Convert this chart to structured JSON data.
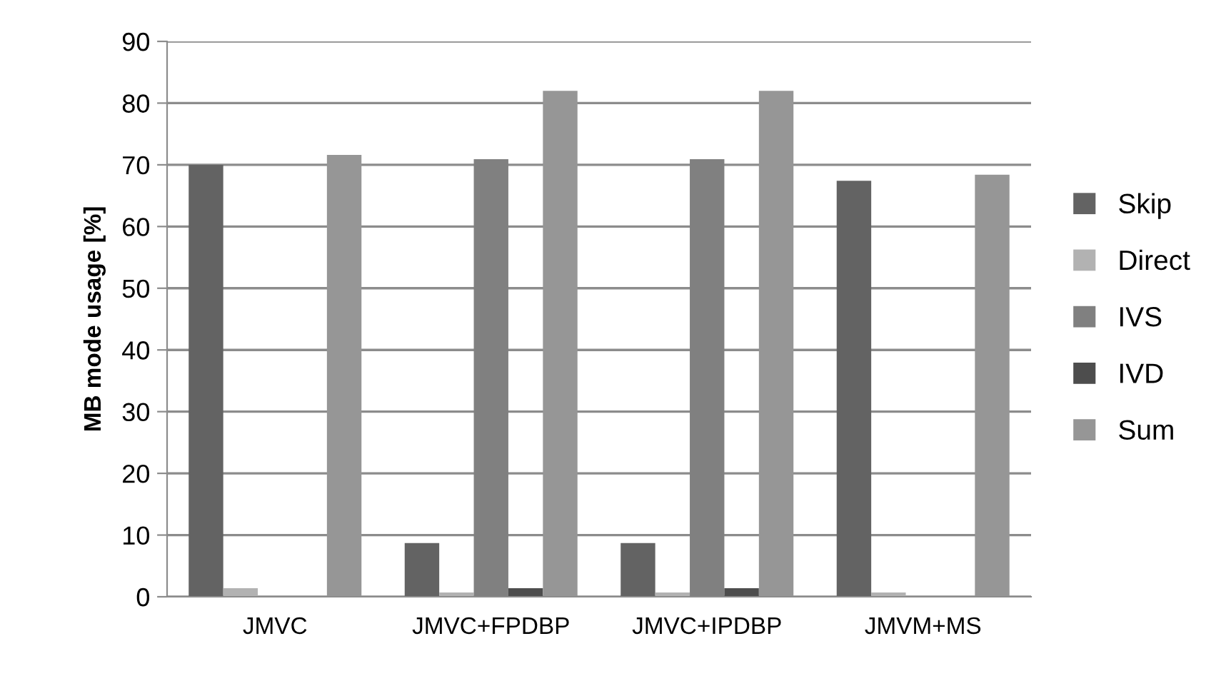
{
  "chart_data": {
    "type": "bar",
    "ylabel": "MB mode usage [%]",
    "categories": [
      "JMVC",
      "JMVC+FPDBP",
      "JMVC+IPDBP",
      "JMVM+MS"
    ],
    "series": [
      {
        "name": "Skip",
        "color": "#636363",
        "values": [
          70.0,
          8.7,
          8.7,
          67.4
        ]
      },
      {
        "name": "Direct",
        "color": "#b2b2b2",
        "values": [
          1.4,
          0.7,
          0.7,
          0.7
        ]
      },
      {
        "name": "IVS",
        "color": "#808080",
        "values": [
          0,
          70.9,
          70.9,
          0
        ]
      },
      {
        "name": "IVD",
        "color": "#4d4d4d",
        "values": [
          0,
          1.4,
          1.4,
          0
        ]
      },
      {
        "name": "Sum",
        "color": "#969696",
        "values": [
          71.6,
          82.0,
          82.0,
          68.4
        ]
      }
    ],
    "ylim": [
      0,
      90
    ],
    "yticks": [
      0,
      10,
      20,
      30,
      40,
      50,
      60,
      70,
      80,
      90
    ],
    "grid": "y",
    "legend": "right"
  }
}
